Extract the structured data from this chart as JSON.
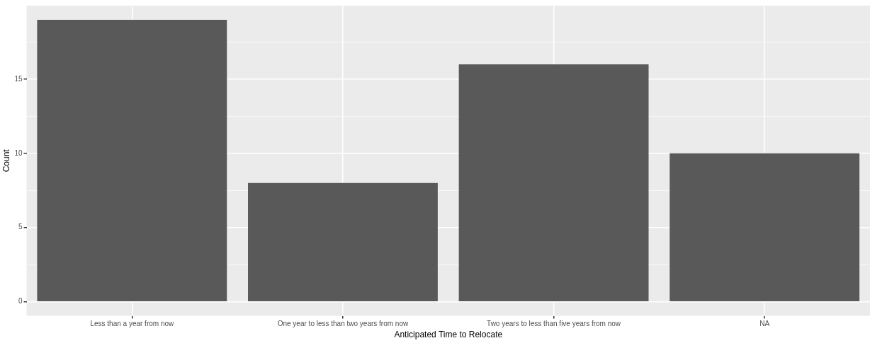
{
  "chart_data": {
    "type": "bar",
    "xlabel": "Anticipated Time to Relocate",
    "ylabel": "Count",
    "categories": [
      "Less than a year from now",
      "One year to less than two years from now",
      "Two years to less than five years from now",
      "NA"
    ],
    "values": [
      19,
      8,
      16,
      10
    ],
    "color": "#595959",
    "ylim": [
      -0.95,
      19.95
    ],
    "yticks": [
      0,
      {
        "value": 2.5,
        "label": null
      },
      5,
      {
        "value": 7.5,
        "label": null
      },
      10,
      {
        "value": 12.5,
        "label": null
      },
      15,
      {
        "value": 17.5,
        "label": null
      }
    ],
    "grid": true,
    "legend": false
  }
}
